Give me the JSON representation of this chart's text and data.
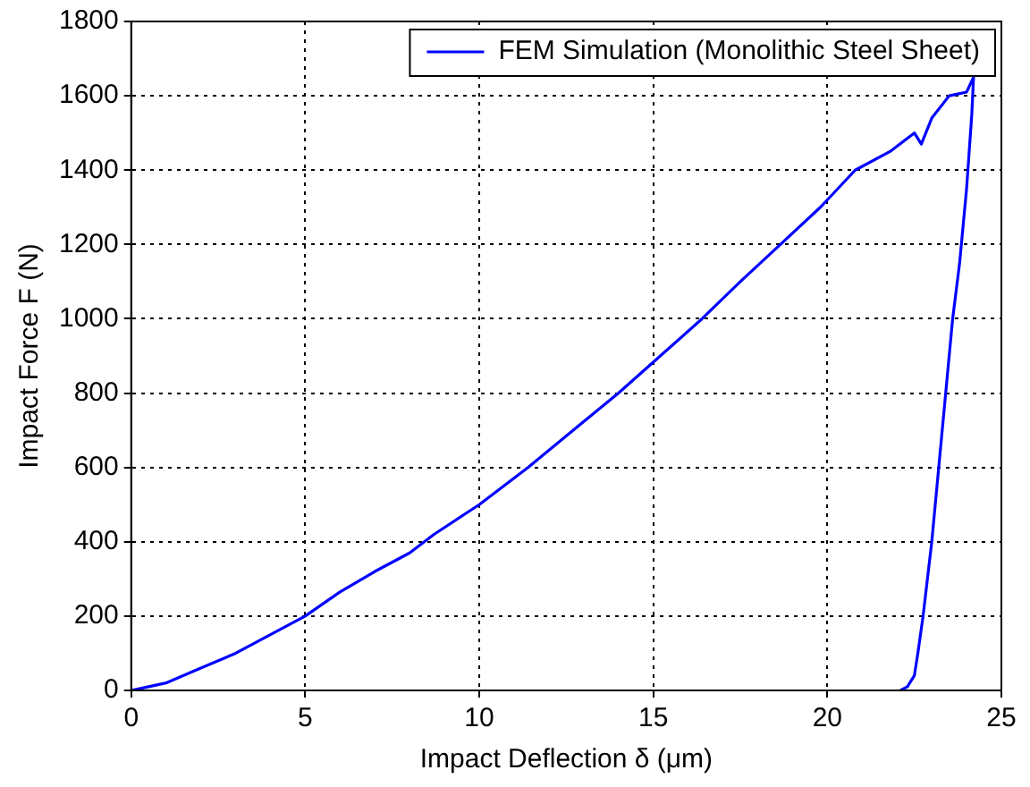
{
  "chart_data": {
    "type": "line",
    "xlabel": "Impact Deflection δ (μm)",
    "ylabel": "Impact Force F (N)",
    "xlim": [
      0,
      25
    ],
    "xticks": [
      0,
      5,
      10,
      15,
      20,
      25
    ],
    "ylim": [
      0,
      1800
    ],
    "yticks": [
      0,
      200,
      400,
      600,
      800,
      1000,
      1200,
      1400,
      1600,
      1800
    ],
    "grid": true,
    "legend": "top right",
    "marker": "none",
    "line_style": "solid",
    "series": [
      {
        "name": "FEM Simulation (Monolithic Steel Sheet)",
        "color": "#0000ff",
        "x": [
          0,
          0.5,
          1,
          2,
          3,
          4,
          5,
          6,
          7,
          8,
          8.7,
          10,
          11.4,
          12.7,
          14,
          15.2,
          16.4,
          17.5,
          18.65,
          19.8,
          20.8,
          21.8,
          22.5,
          22.7,
          23,
          23.5,
          24,
          24.2,
          24.15,
          24,
          23.8,
          23.6,
          23.4,
          23.2,
          23,
          22.75,
          22.6,
          22.5,
          22.3,
          22.1
        ],
        "values": [
          0,
          10,
          20,
          60,
          100,
          150,
          200,
          265,
          320,
          370,
          420,
          500,
          600,
          700,
          800,
          900,
          1000,
          1100,
          1200,
          1300,
          1400,
          1450,
          1500,
          1470,
          1540,
          1600,
          1610,
          1650,
          1550,
          1350,
          1150,
          1000,
          800,
          600,
          400,
          200,
          100,
          40,
          10,
          0
        ]
      }
    ]
  }
}
